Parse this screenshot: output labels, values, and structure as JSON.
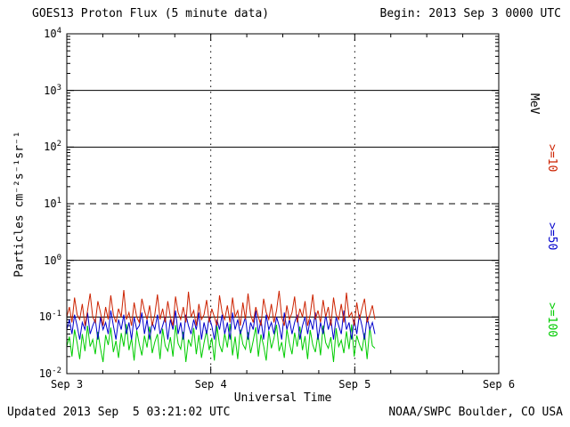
{
  "header": {
    "begin_label": "Begin: 2013 Sep 3 0000 UTC"
  },
  "footer": {
    "updated": "Updated 2013 Sep  5 03:21:02 UTC",
    "source": "NOAA/SWPC Boulder, CO USA"
  },
  "chart_data": {
    "type": "line",
    "title": "GOES13 Proton Flux (5 minute data)",
    "xlabel": "Universal Time",
    "ylabel": "Particles cm⁻²s⁻¹sr⁻¹",
    "x_axis": {
      "start_day": 0,
      "end_day": 3,
      "tick_days": [
        0,
        1,
        2,
        3
      ],
      "tick_labels": [
        "Sep 3",
        "Sep 4",
        "Sep 5",
        "Sep 6"
      ]
    },
    "y_axis": {
      "scale": "log",
      "min_exp": -2,
      "max_exp": 4,
      "ticks": [
        {
          "base": "10",
          "exp": "4"
        },
        {
          "base": "10",
          "exp": "3"
        },
        {
          "base": "10",
          "exp": "2"
        },
        {
          "base": "10",
          "exp": "1"
        },
        {
          "base": "10",
          "exp": "0"
        },
        {
          "base": "10",
          "exp": "-1"
        },
        {
          "base": "10",
          "exp": "-2"
        }
      ]
    },
    "grid": {
      "solid_exps": [
        3,
        2,
        0,
        -1
      ],
      "dashed_exps": [
        1
      ],
      "vertical_days": [
        1,
        2
      ]
    },
    "legend": {
      "unit_label": "MeV",
      "unit_color": "#000000",
      "series_labels": [
        {
          "label": ">=10",
          "color": "#cc2200"
        },
        {
          "label": ">=50",
          "color": "#0000cc"
        },
        {
          "label": ">=100",
          "color": "#00cc00"
        }
      ]
    },
    "series": [
      {
        "name": ">=10 MeV",
        "color": "#cc2200",
        "start_day": 0,
        "end_day": 2.14,
        "values": [
          0.1,
          0.15,
          0.08,
          0.22,
          0.11,
          0.09,
          0.17,
          0.07,
          0.13,
          0.26,
          0.1,
          0.08,
          0.19,
          0.12,
          0.07,
          0.15,
          0.09,
          0.24,
          0.11,
          0.08,
          0.14,
          0.1,
          0.3,
          0.09,
          0.12,
          0.07,
          0.18,
          0.1,
          0.08,
          0.21,
          0.13,
          0.09,
          0.16,
          0.07,
          0.11,
          0.25,
          0.09,
          0.14,
          0.08,
          0.19,
          0.1,
          0.07,
          0.23,
          0.12,
          0.09,
          0.15,
          0.08,
          0.28,
          0.1,
          0.13,
          0.07,
          0.17,
          0.09,
          0.11,
          0.2,
          0.08,
          0.14,
          0.1,
          0.07,
          0.24,
          0.12,
          0.09,
          0.16,
          0.08,
          0.22,
          0.1,
          0.13,
          0.07,
          0.18,
          0.09,
          0.26,
          0.11,
          0.08,
          0.15,
          0.1,
          0.07,
          0.21,
          0.12,
          0.09,
          0.17,
          0.08,
          0.13,
          0.29,
          0.1,
          0.07,
          0.16,
          0.09,
          0.12,
          0.23,
          0.08,
          0.14,
          0.1,
          0.19,
          0.07,
          0.11,
          0.25,
          0.09,
          0.13,
          0.08,
          0.2,
          0.1,
          0.15,
          0.07,
          0.22,
          0.11,
          0.09,
          0.17,
          0.08,
          0.27,
          0.1,
          0.12,
          0.07,
          0.18,
          0.09,
          0.14,
          0.21,
          0.08,
          0.11,
          0.16,
          0.09
        ]
      },
      {
        "name": ">=50 MeV",
        "color": "#0000cc",
        "start_day": 0,
        "end_day": 2.14,
        "values": [
          0.06,
          0.09,
          0.05,
          0.11,
          0.07,
          0.04,
          0.08,
          0.06,
          0.12,
          0.05,
          0.07,
          0.09,
          0.04,
          0.1,
          0.06,
          0.08,
          0.05,
          0.13,
          0.07,
          0.04,
          0.09,
          0.06,
          0.11,
          0.05,
          0.08,
          0.04,
          0.1,
          0.06,
          0.07,
          0.12,
          0.05,
          0.09,
          0.04,
          0.08,
          0.06,
          0.11,
          0.05,
          0.07,
          0.1,
          0.04,
          0.09,
          0.06,
          0.13,
          0.05,
          0.08,
          0.04,
          0.11,
          0.07,
          0.05,
          0.09,
          0.06,
          0.12,
          0.04,
          0.08,
          0.05,
          0.1,
          0.07,
          0.04,
          0.09,
          0.06,
          0.11,
          0.05,
          0.08,
          0.04,
          0.12,
          0.06,
          0.09,
          0.05,
          0.07,
          0.1,
          0.04,
          0.08,
          0.06,
          0.13,
          0.05,
          0.09,
          0.04,
          0.11,
          0.06,
          0.08,
          0.05,
          0.1,
          0.07,
          0.04,
          0.12,
          0.06,
          0.09,
          0.05,
          0.08,
          0.11,
          0.04,
          0.07,
          0.1,
          0.05,
          0.09,
          0.06,
          0.12,
          0.04,
          0.08,
          0.05,
          0.11,
          0.06,
          0.09,
          0.04,
          0.1,
          0.07,
          0.05,
          0.13,
          0.06,
          0.08,
          0.04,
          0.09,
          0.05,
          0.11,
          0.07,
          0.04,
          0.1,
          0.06,
          0.08,
          0.05
        ]
      },
      {
        "name": ">=100 MeV",
        "color": "#00cc00",
        "start_day": 0,
        "end_day": 2.14,
        "values": [
          0.03,
          0.045,
          0.02,
          0.06,
          0.035,
          0.018,
          0.05,
          0.025,
          0.07,
          0.03,
          0.04,
          0.022,
          0.055,
          0.028,
          0.016,
          0.048,
          0.032,
          0.065,
          0.024,
          0.038,
          0.019,
          0.052,
          0.03,
          0.075,
          0.026,
          0.042,
          0.017,
          0.058,
          0.033,
          0.021,
          0.047,
          0.029,
          0.068,
          0.023,
          0.036,
          0.05,
          0.018,
          0.062,
          0.031,
          0.025,
          0.044,
          0.02,
          0.072,
          0.034,
          0.027,
          0.055,
          0.016,
          0.04,
          0.03,
          0.064,
          0.022,
          0.048,
          0.019,
          0.035,
          0.058,
          0.026,
          0.043,
          0.017,
          0.069,
          0.032,
          0.024,
          0.051,
          0.029,
          0.076,
          0.021,
          0.045,
          0.018,
          0.06,
          0.033,
          0.027,
          0.054,
          0.023,
          0.038,
          0.066,
          0.02,
          0.049,
          0.031,
          0.017,
          0.057,
          0.028,
          0.042,
          0.073,
          0.025,
          0.036,
          0.019,
          0.061,
          0.034,
          0.022,
          0.053,
          0.03,
          0.068,
          0.026,
          0.046,
          0.018,
          0.059,
          0.032,
          0.024,
          0.05,
          0.021,
          0.071,
          0.035,
          0.028,
          0.044,
          0.016,
          0.063,
          0.03,
          0.039,
          0.023,
          0.056,
          0.027,
          0.074,
          0.02,
          0.047,
          0.033,
          0.025,
          0.052,
          0.018,
          0.065,
          0.031,
          0.028
        ]
      }
    ]
  }
}
